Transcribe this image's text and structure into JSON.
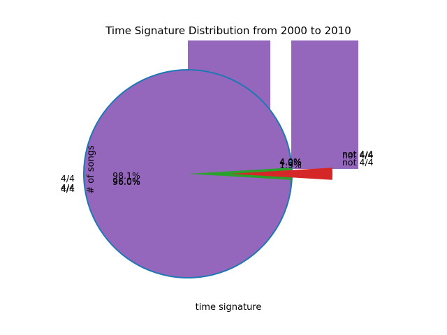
{
  "chart_data": {
    "type": "pie",
    "title": "Time Signature Distribution from 2000 to 2010",
    "xlabel": "time signature",
    "ylabel": "# of songs",
    "categories": [
      "4/4",
      "not 4/4"
    ],
    "series": [
      {
        "values": [
          96.0,
          4.0
        ],
        "percent_labels": [
          "96.0%",
          "4.0%"
        ]
      },
      {
        "values": [
          96.0,
          4.0
        ],
        "percent_labels": [
          "96.0%",
          "4.0%"
        ]
      },
      {
        "values": [
          98.1,
          1.9
        ],
        "percent_labels": [
          "98.1%",
          "1.9%"
        ]
      }
    ],
    "background_bars": [
      {
        "color": "#9467bd"
      },
      {
        "color": "#9467bd"
      }
    ],
    "colors": {
      "main": "#9467bd",
      "blue": "#1f77b4",
      "green": "#2ca02c",
      "red": "#d62728"
    }
  }
}
